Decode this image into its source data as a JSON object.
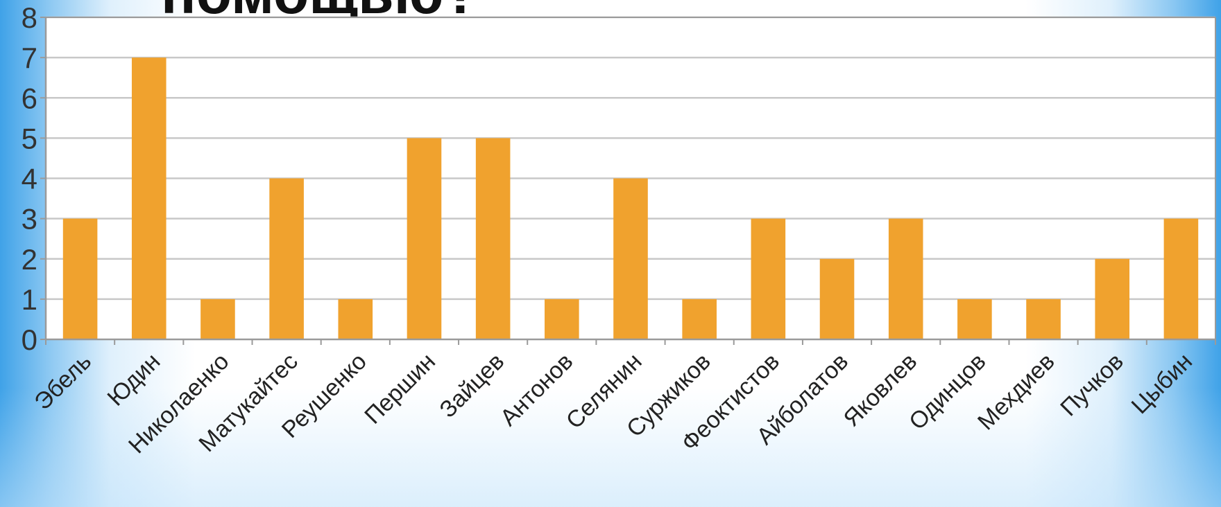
{
  "slide": {
    "title": "помощью?"
  },
  "chart_data": {
    "type": "bar",
    "categories": [
      "Эбель",
      "Юдин",
      "Николаенко",
      "Матукайтес",
      "Реушенко",
      "Першин",
      "Зайцев",
      "Антонов",
      "Селянин",
      "Суржиков",
      "Феоктистов",
      "Айболатов",
      "Яковлев",
      "Одинцов",
      "Мехдиев",
      "Пучков",
      "Цыбин"
    ],
    "values": [
      3,
      7,
      1,
      4,
      1,
      5,
      5,
      1,
      4,
      1,
      3,
      2,
      3,
      1,
      1,
      2,
      3
    ],
    "yticks": [
      "0",
      "1",
      "2",
      "3",
      "4",
      "5",
      "6",
      "7",
      "8"
    ],
    "ylim": [
      0,
      8
    ],
    "grid": true,
    "legend": "none",
    "bar_color": "#f0a22e",
    "grid_color": "#c8c8c8",
    "axis_color": "#9a9a9a"
  }
}
